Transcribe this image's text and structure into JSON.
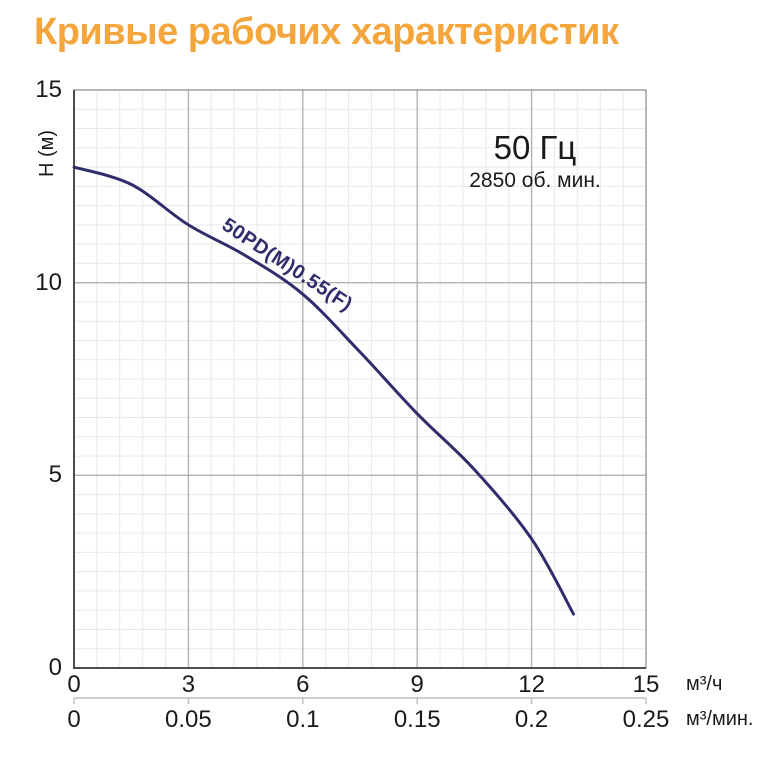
{
  "page": {
    "title": "Кривые рабочих характеристик"
  },
  "annotation": {
    "frequency": "50 Гц",
    "rpm": "2850 об. мин."
  },
  "chart_data": {
    "type": "line",
    "title": "Кривые рабочих характеристик",
    "ylabel": "Н (м)",
    "xlabel_primary": "м³/ч",
    "xlabel_secondary": "м³/мин.",
    "xlim": [
      0,
      15
    ],
    "ylim": [
      0,
      15
    ],
    "x_ticks_primary": [
      "0",
      "3",
      "6",
      "9",
      "12",
      "15"
    ],
    "x_ticks_secondary": [
      "0",
      "0.05",
      "0.1",
      "0.15",
      "0.2",
      "0.25"
    ],
    "y_ticks": [
      "15",
      "10",
      "5",
      "0"
    ],
    "y_tick_values": [
      15,
      10,
      5,
      0
    ],
    "x_tick_values": [
      0,
      3,
      6,
      9,
      12,
      15
    ],
    "x_minor_step": 0.6,
    "y_minor_step": 0.5,
    "grid": true,
    "legend_position": "on-curve",
    "series": [
      {
        "name": "50PD(M)0.55(F)",
        "points": [
          [
            0,
            13.0
          ],
          [
            1.5,
            12.55
          ],
          [
            3,
            11.5
          ],
          [
            4.5,
            10.7
          ],
          [
            6,
            9.7
          ],
          [
            7.5,
            8.2
          ],
          [
            9,
            6.6
          ],
          [
            10.5,
            5.15
          ],
          [
            12,
            3.35
          ],
          [
            13.1,
            1.4
          ]
        ]
      }
    ]
  },
  "colors": {
    "title": "#F4A63D",
    "curve": "#2F2D6B",
    "text": "#1A1A1A",
    "grid_minor": "#E9E9E9",
    "grid_major": "#B3B3B3",
    "plot_border": "#999999",
    "axis_line": "#4D4D4D",
    "secondary_ruler": "#BFBFBF"
  }
}
